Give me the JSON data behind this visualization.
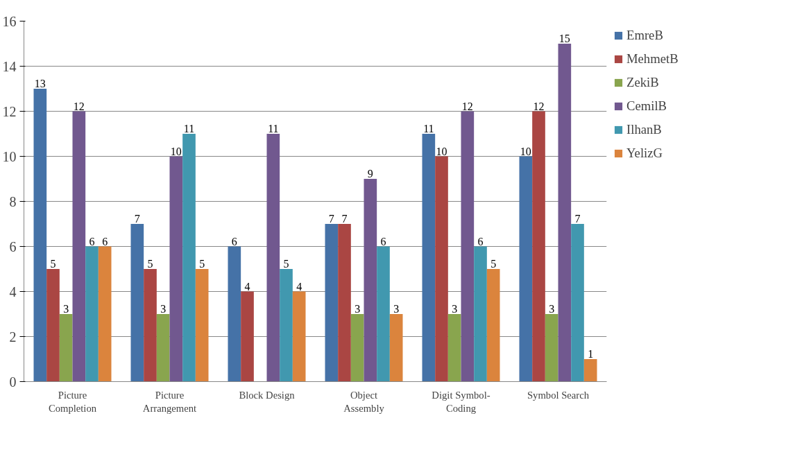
{
  "chart_data": {
    "type": "bar",
    "categories": [
      "Picture\nCompletion",
      "Picture\nArrangement",
      "Block Design",
      "Object\nAssembly",
      "Digit Symbol-\nCoding",
      "Symbol Search"
    ],
    "series": [
      {
        "name": "EmreB",
        "color": "#4572a7",
        "values": [
          13,
          7,
          6,
          7,
          11,
          10
        ]
      },
      {
        "name": "MehmetB",
        "color": "#aa4643",
        "values": [
          5,
          5,
          4,
          7,
          10,
          12
        ]
      },
      {
        "name": "ZekiB",
        "color": "#89a54e",
        "values": [
          3,
          3,
          null,
          3,
          3,
          3
        ]
      },
      {
        "name": "CemilB",
        "color": "#71588f",
        "values": [
          12,
          10,
          11,
          9,
          12,
          15
        ]
      },
      {
        "name": "IlhanB",
        "color": "#4198af",
        "values": [
          6,
          11,
          5,
          6,
          6,
          7
        ]
      },
      {
        "name": "YelizG",
        "color": "#db843d",
        "values": [
          6,
          5,
          4,
          3,
          5,
          1
        ]
      }
    ],
    "ylim": [
      0,
      16
    ],
    "yticks": [
      0,
      2,
      4,
      6,
      8,
      10,
      12,
      14,
      16
    ],
    "grid": "y",
    "legend": "right",
    "data_labels": true
  }
}
